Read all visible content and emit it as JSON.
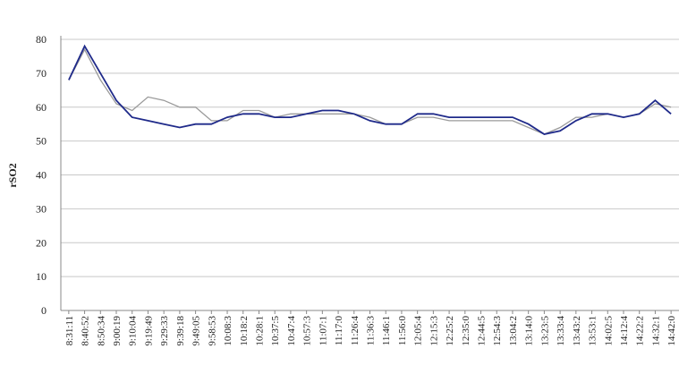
{
  "chart_data": {
    "type": "line",
    "y_label": "rSO2",
    "categories": [
      "8:31:11",
      "8:40:52",
      "8:50:34",
      "9:00:19",
      "9:10:04",
      "9:19:49",
      "9:29:33",
      "9:39:18",
      "9:49:05",
      "9:58:53",
      "10:08:3",
      "10:18:2",
      "10:28:1",
      "10:37:5",
      "10:47:4",
      "10:57:3",
      "11:07:1",
      "11:17:0",
      "11:26:4",
      "11:36:3",
      "11:46:1",
      "11:56:0",
      "12:05:4",
      "12:15:3",
      "12:25:2",
      "12:35:0",
      "12:44:5",
      "12:54:3",
      "13:04:2",
      "13:14:0",
      "13:23:5",
      "13:33:4",
      "13:43:2",
      "13:53:1",
      "14:02:5",
      "14:12:4",
      "14:22:2",
      "14:32:1",
      "14:42:0"
    ],
    "series": [
      {
        "color": "#1f2a8a",
        "values": [
          68,
          78,
          70,
          62,
          57,
          56,
          55,
          54,
          55,
          55,
          57,
          58,
          58,
          57,
          57,
          58,
          59,
          59,
          58,
          56,
          55,
          55,
          58,
          58,
          57,
          57,
          57,
          57,
          57,
          55,
          52,
          53,
          56,
          58,
          58,
          57,
          58,
          62,
          58
        ]
      },
      {
        "color": "#9a9a9a",
        "values": [
          68,
          77,
          68,
          61,
          59,
          63,
          62,
          60,
          60,
          56,
          56,
          59,
          59,
          57,
          58,
          58,
          58,
          58,
          58,
          57,
          55,
          55,
          57,
          57,
          56,
          56,
          56,
          56,
          56,
          54,
          52,
          54,
          57,
          57,
          58,
          57,
          58,
          61,
          60
        ]
      }
    ],
    "ylim": [
      0,
      80
    ],
    "yticks": [
      0,
      10,
      20,
      30,
      40,
      50,
      60,
      70,
      80
    ],
    "grid": true
  }
}
